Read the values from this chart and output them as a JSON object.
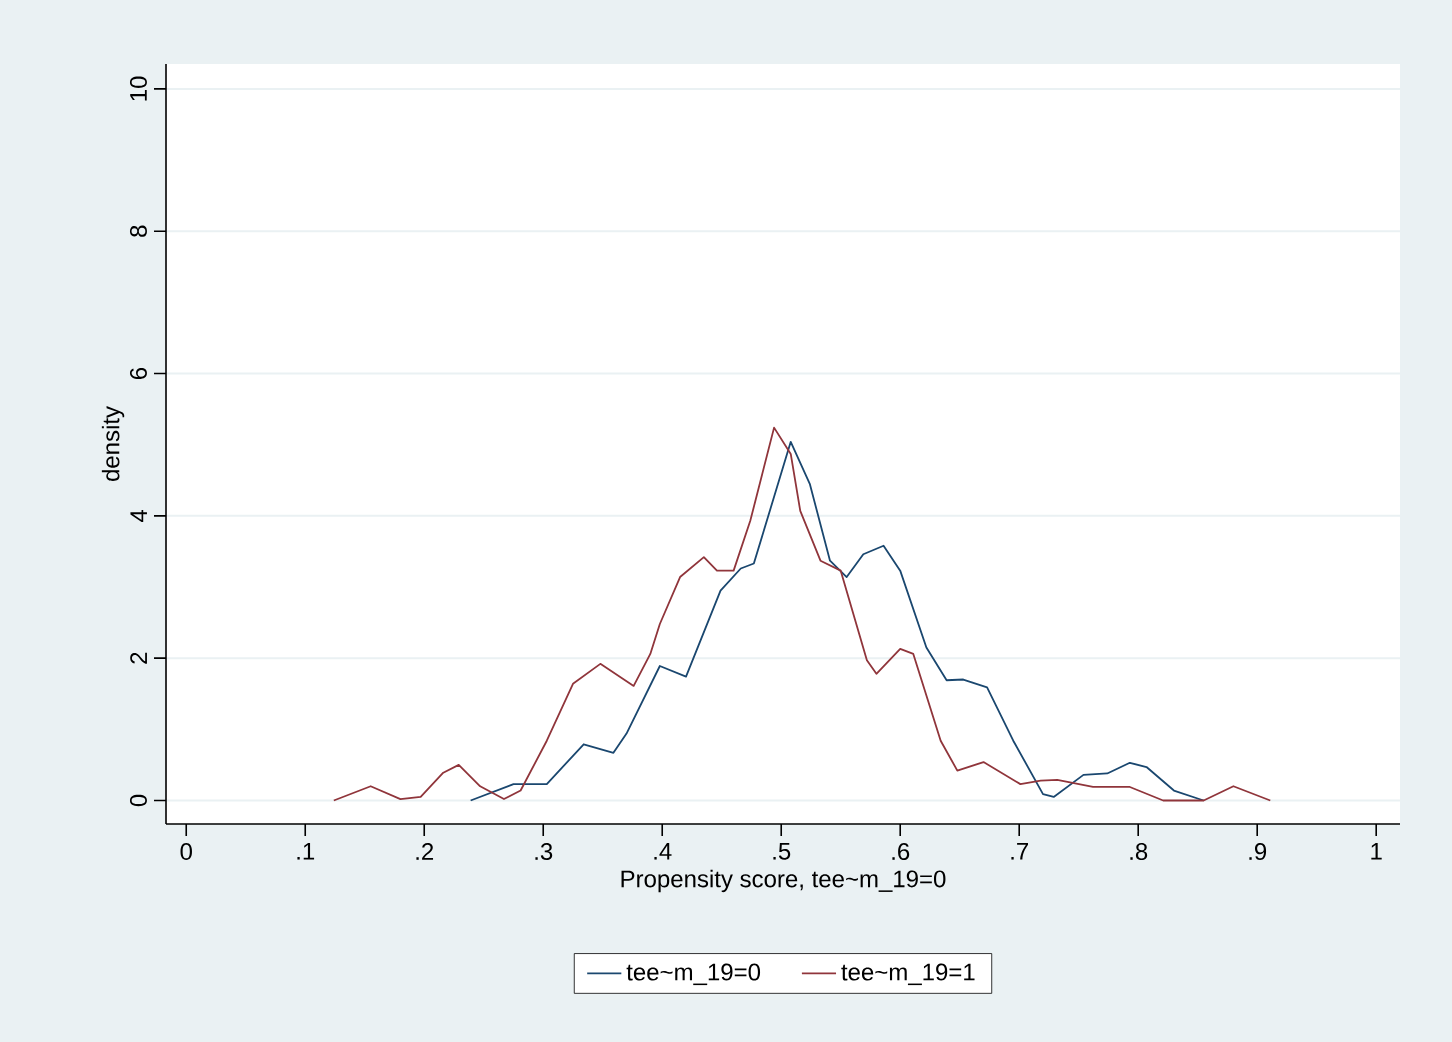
{
  "chart_data": {
    "type": "line",
    "xlabel": "Propensity score, tee~m_19=0",
    "ylabel": "density",
    "xlim": [
      -0.017,
      1.02
    ],
    "ylim": [
      -0.33,
      10.35
    ],
    "xticks": [
      0,
      {
        "value": 0.1,
        "label": ".1"
      },
      {
        "value": 0.2,
        "label": ".2"
      },
      {
        "value": 0.3,
        "label": ".3"
      },
      {
        "value": 0.4,
        "label": ".4"
      },
      {
        "value": 0.5,
        "label": ".5"
      },
      {
        "value": 0.6,
        "label": ".6"
      },
      {
        "value": 0.7,
        "label": ".7"
      },
      {
        "value": 0.8,
        "label": ".8"
      },
      {
        "value": 0.9,
        "label": ".9"
      },
      1
    ],
    "yticks": [
      0,
      2,
      4,
      6,
      8,
      10
    ],
    "grid": "y",
    "legend": "bottom",
    "marker": "none",
    "line_style": "solid",
    "series": [
      {
        "name": "tee~m_19=0",
        "color": "#1a476f",
        "x": [
          0.239,
          0.275,
          0.303,
          0.334,
          0.359,
          0.37,
          0.398,
          0.42,
          0.449,
          0.466,
          0.477,
          0.508,
          0.524,
          0.541,
          0.555,
          0.569,
          0.586,
          0.6,
          0.622,
          0.639,
          0.653,
          0.673,
          0.695,
          0.72,
          0.729,
          0.754,
          0.774,
          0.793,
          0.807,
          0.83,
          0.855
        ],
        "values": [
          0,
          0.23,
          0.23,
          0.79,
          0.67,
          0.94,
          1.89,
          1.74,
          2.95,
          3.26,
          3.33,
          5.04,
          4.45,
          3.37,
          3.14,
          3.46,
          3.58,
          3.23,
          2.15,
          1.69,
          1.7,
          1.59,
          0.84,
          0.09,
          0.05,
          0.36,
          0.38,
          0.53,
          0.47,
          0.14,
          0
        ]
      },
      {
        "name": "tee~m_19=1",
        "color": "#90353b",
        "x": [
          0.124,
          0.155,
          0.18,
          0.197,
          0.216,
          0.229,
          0.247,
          0.267,
          0.281,
          0.303,
          0.325,
          0.348,
          0.376,
          0.39,
          0.398,
          0.415,
          0.435,
          0.446,
          0.46,
          0.474,
          0.494,
          0.508,
          0.516,
          0.533,
          0.55,
          0.572,
          0.58,
          0.6,
          0.611,
          0.634,
          0.648,
          0.67,
          0.701,
          0.718,
          0.732,
          0.762,
          0.793,
          0.821,
          0.855,
          0.88,
          0.911
        ],
        "values": [
          0,
          0.2,
          0.02,
          0.05,
          0.39,
          0.5,
          0.2,
          0.02,
          0.14,
          0.84,
          1.64,
          1.92,
          1.61,
          2.06,
          2.48,
          3.14,
          3.42,
          3.23,
          3.23,
          3.93,
          5.24,
          4.87,
          4.07,
          3.37,
          3.23,
          1.97,
          1.78,
          2.13,
          2.06,
          0.84,
          0.42,
          0.54,
          0.23,
          0.28,
          0.29,
          0.19,
          0.19,
          0,
          0,
          0.2,
          0
        ]
      }
    ]
  }
}
